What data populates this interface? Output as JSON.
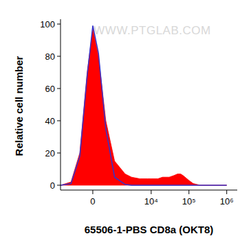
{
  "chart_data": {
    "type": "area",
    "x_label": "65506-1-PBS CD8a (OKT8)",
    "y_label": "Relative cell number",
    "annotations": [
      "WWW.PTGLAB.COM"
    ],
    "log": "x",
    "x": [
      -2000,
      -1000,
      -500,
      -200,
      0,
      200,
      500,
      1000,
      2000,
      3000,
      5000,
      8000,
      10000,
      15000,
      20000,
      30000,
      40000,
      50000,
      60000,
      70000,
      100000,
      130000,
      200000,
      1000000
    ],
    "series": [
      {
        "type": "area",
        "color": "#ff0000",
        "values": [
          0,
          2,
          20,
          70,
          97,
          80,
          40,
          15,
          7,
          5,
          4,
          4,
          4,
          4,
          5,
          5,
          6,
          7,
          7,
          6,
          3,
          1,
          0,
          0
        ]
      },
      {
        "type": "line",
        "color": "#3333cc",
        "values": [
          0,
          1,
          18,
          68,
          99,
          82,
          35,
          5,
          0.5,
          0,
          0,
          0,
          0,
          0,
          0,
          0,
          0,
          0,
          0,
          0,
          0,
          0,
          0,
          0
        ]
      }
    ],
    "xlim": [
      -2000,
      1900000
    ],
    "xticks": [
      0,
      {
        "value": 10000,
        "label": "10⁴"
      },
      {
        "value": 100000,
        "label": "10⁵"
      },
      {
        "value": 1000000,
        "label": "10⁶"
      }
    ],
    "ylim": [
      -3,
      103
    ],
    "yticks": [
      0,
      20,
      40,
      60,
      80,
      100
    ],
    "grid": false
  }
}
